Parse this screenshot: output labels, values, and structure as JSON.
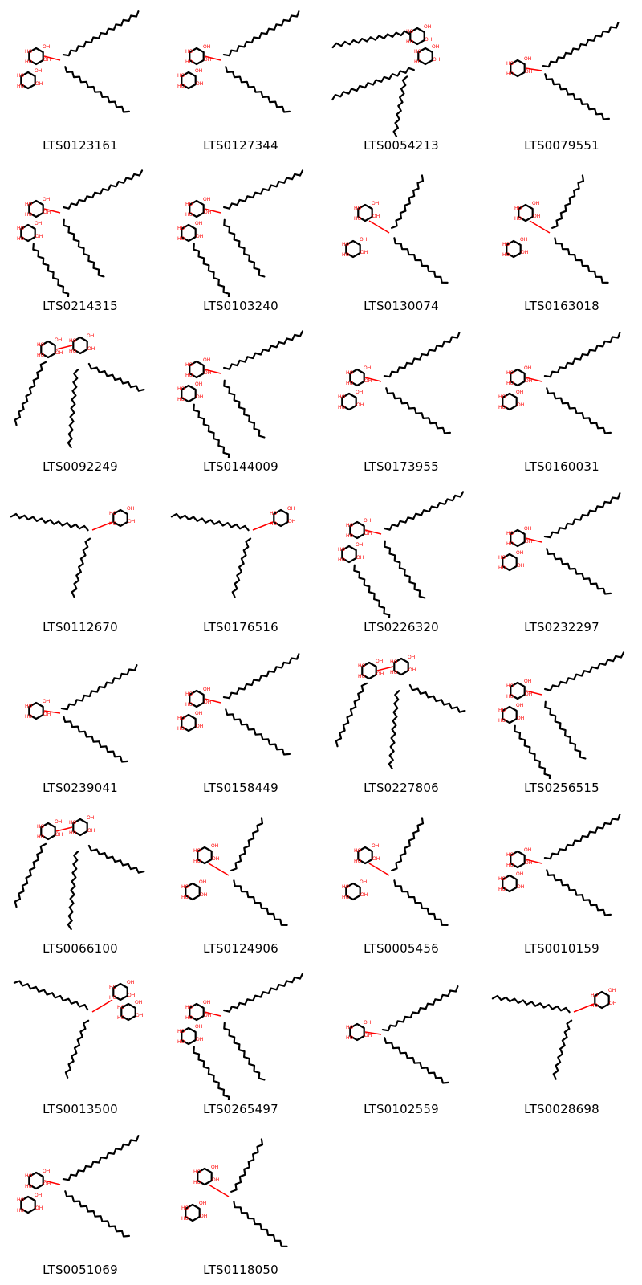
{
  "grid": {
    "molecules": [
      {
        "id": "LTS0123161",
        "variant": "y2"
      },
      {
        "id": "LTS0127344",
        "variant": "y2"
      },
      {
        "id": "LTS0054213",
        "variant": "top"
      },
      {
        "id": "LTS0079551",
        "variant": "y1"
      },
      {
        "id": "LTS0214315",
        "variant": "y3"
      },
      {
        "id": "LTS0103240",
        "variant": "y3"
      },
      {
        "id": "LTS0130074",
        "variant": "up2"
      },
      {
        "id": "LTS0163018",
        "variant": "up2"
      },
      {
        "id": "LTS0092249",
        "variant": "tri"
      },
      {
        "id": "LTS0144009",
        "variant": "y3"
      },
      {
        "id": "LTS0173955",
        "variant": "y2"
      },
      {
        "id": "LTS0160031",
        "variant": "y2"
      },
      {
        "id": "LTS0112670",
        "variant": "rt"
      },
      {
        "id": "LTS0176516",
        "variant": "rt"
      },
      {
        "id": "LTS0226320",
        "variant": "y3"
      },
      {
        "id": "LTS0232297",
        "variant": "y2"
      },
      {
        "id": "LTS0239041",
        "variant": "y1"
      },
      {
        "id": "LTS0158449",
        "variant": "y2"
      },
      {
        "id": "LTS0227806",
        "variant": "tri"
      },
      {
        "id": "LTS0256515",
        "variant": "y3"
      },
      {
        "id": "LTS0066100",
        "variant": "tri"
      },
      {
        "id": "LTS0124906",
        "variant": "up2"
      },
      {
        "id": "LTS0005456",
        "variant": "up2"
      },
      {
        "id": "LTS0010159",
        "variant": "y2"
      },
      {
        "id": "LTS0013500",
        "variant": "rt2"
      },
      {
        "id": "LTS0265497",
        "variant": "y3"
      },
      {
        "id": "LTS0102559",
        "variant": "y1"
      },
      {
        "id": "LTS0028698",
        "variant": "rt"
      },
      {
        "id": "LTS0051069",
        "variant": "y2"
      },
      {
        "id": "LTS0118050",
        "variant": "up2"
      }
    ]
  },
  "colors": {
    "carbon": "#000000",
    "oxygen": "#ff0000",
    "label": "#000000"
  },
  "atom_labels": {
    "hydroxyl": "HO",
    "hydroxyl_alt": "OH",
    "oxygen": "O"
  }
}
